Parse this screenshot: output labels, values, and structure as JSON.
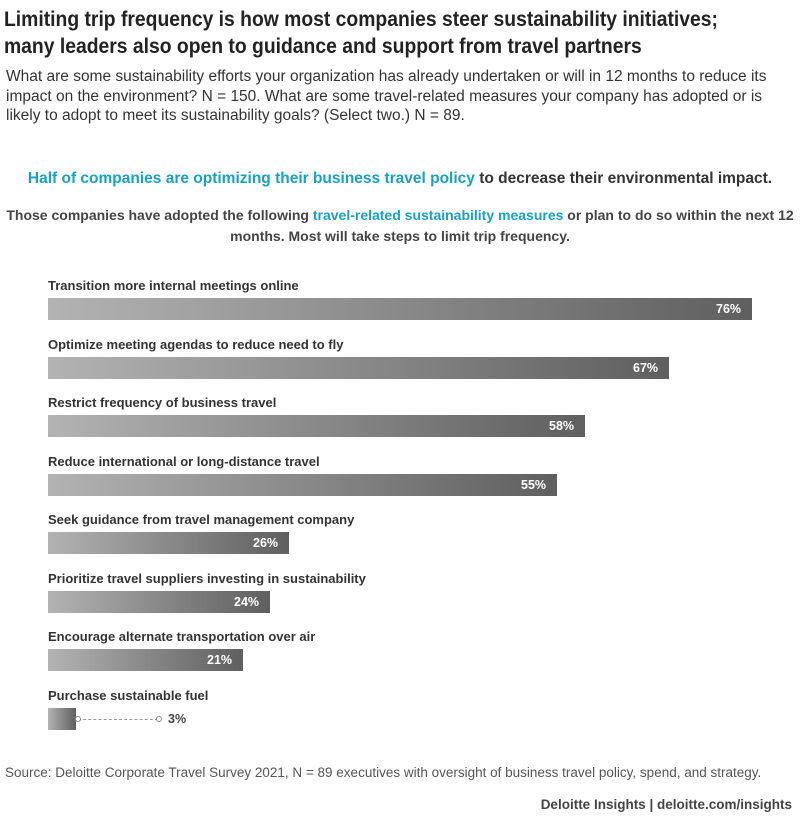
{
  "header": {
    "title_line1": "Limiting trip frequency is how most companies steer sustainability initiatives;",
    "title_line2": "many leaders also open to guidance and support from travel partners",
    "subtitle": "What are some sustainability efforts your organization has already undertaken or will in 12 months to reduce its impact on the environment? N = 150. What are some travel-related measures your company has adopted or is likely to adopt to meet its sustainability goals? (Select two.) N = 89."
  },
  "highlight": {
    "teal_part": "Half of companies are optimizing their business travel policy",
    "rest": " to decrease their environmental impact."
  },
  "lead": {
    "part1": "Those companies have adopted the following ",
    "teal_part": "travel-related sustainability measures",
    "part2": " or plan to do so within the next 12 months. Most will take steps to limit trip frequency."
  },
  "chart_data": {
    "type": "bar",
    "orientation": "horizontal",
    "categories": [
      "Transition more internal meetings online",
      "Optimize meeting agendas to reduce need to fly",
      "Restrict frequency of business travel",
      "Reduce international or long-distance travel",
      "Seek guidance from travel management company",
      "Prioritize travel suppliers investing in sustainability",
      "Encourage alternate transportation over air",
      "Purchase sustainable fuel"
    ],
    "values": [
      76,
      67,
      58,
      55,
      26,
      24,
      21,
      3
    ],
    "value_labels": [
      "76%",
      "67%",
      "58%",
      "55%",
      "26%",
      "24%",
      "21%",
      "3%"
    ],
    "xlim": [
      0,
      100
    ],
    "colors": {
      "bar_light": "#b3b3b3",
      "bar_dark": "#5f5f5f"
    }
  },
  "footer": {
    "source": "Source: Deloitte Corporate Travel Survey 2021, N = 89 executives with oversight of business travel policy, spend, and strategy.",
    "credit": "Deloitte Insights | deloitte.com/insights"
  },
  "colors": {
    "accent": "#1aa0c0",
    "text": "#333333"
  }
}
